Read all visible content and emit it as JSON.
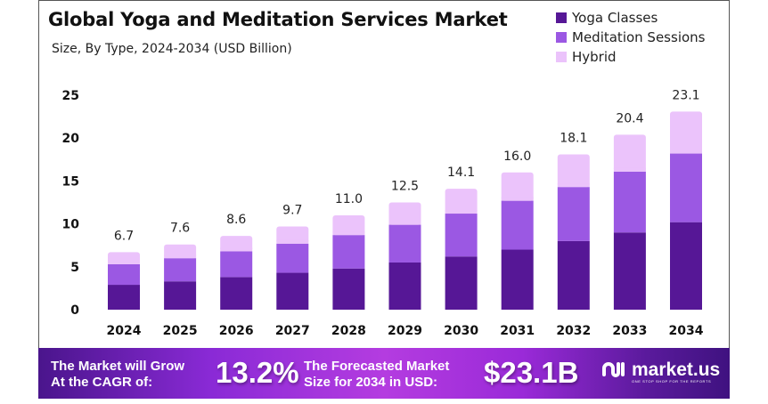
{
  "header": {
    "title": "Global Yoga and Meditation Services Market",
    "subtitle": "Size, By Type, 2024-2034 (USD Billion)"
  },
  "colors": {
    "yoga": "#561796",
    "meditation": "#9b58e3",
    "hybrid": "#ebc3fb",
    "axis_text": "#111111",
    "label_text": "#222222"
  },
  "chart_data": {
    "type": "bar",
    "stacked": true,
    "title": "Global Yoga and Meditation Services Market",
    "subtitle": "Size, By Type, 2024-2034 (USD Billion)",
    "xlabel": "",
    "ylabel": "",
    "ylim": [
      0,
      25
    ],
    "yticks": [
      "0",
      "5",
      "10",
      "15",
      "20",
      "25"
    ],
    "grid": false,
    "legend_position": "top-right",
    "categories": [
      "2024",
      "2025",
      "2026",
      "2027",
      "2028",
      "2029",
      "2030",
      "2031",
      "2032",
      "2033",
      "2034"
    ],
    "series": [
      {
        "name": "Yoga Classes",
        "values": [
          2.9,
          3.3,
          3.8,
          4.3,
          4.8,
          5.5,
          6.2,
          7.0,
          8.0,
          9.0,
          10.2
        ]
      },
      {
        "name": "Meditation Sessions",
        "values": [
          2.4,
          2.7,
          3.0,
          3.4,
          3.9,
          4.4,
          5.0,
          5.7,
          6.3,
          7.1,
          8.0
        ]
      },
      {
        "name": "Hybrid",
        "values": [
          1.4,
          1.6,
          1.8,
          2.0,
          2.3,
          2.6,
          2.9,
          3.3,
          3.8,
          4.3,
          4.9
        ]
      }
    ],
    "totals": [
      "6.7",
      "7.6",
      "8.6",
      "9.7",
      "11.0",
      "12.5",
      "14.1",
      "16.0",
      "18.1",
      "20.4",
      "23.1"
    ]
  },
  "legend": [
    {
      "label": "Yoga Classes"
    },
    {
      "label": "Meditation Sessions"
    },
    {
      "label": "Hybrid"
    }
  ],
  "banner": {
    "cagr_text_line1": "The Market will Grow",
    "cagr_text_line2": "At the CAGR of:",
    "cagr_value": "13.2%",
    "forecast_text_line1": "The Forecasted Market",
    "forecast_text_line2": "Size for 2034 in USD:",
    "forecast_value": "$23.1B",
    "logo_mark": "ꞯꞮ",
    "logo_name": "market.us",
    "logo_tagline": "ONE STOP SHOP FOR THE REPORTS"
  }
}
